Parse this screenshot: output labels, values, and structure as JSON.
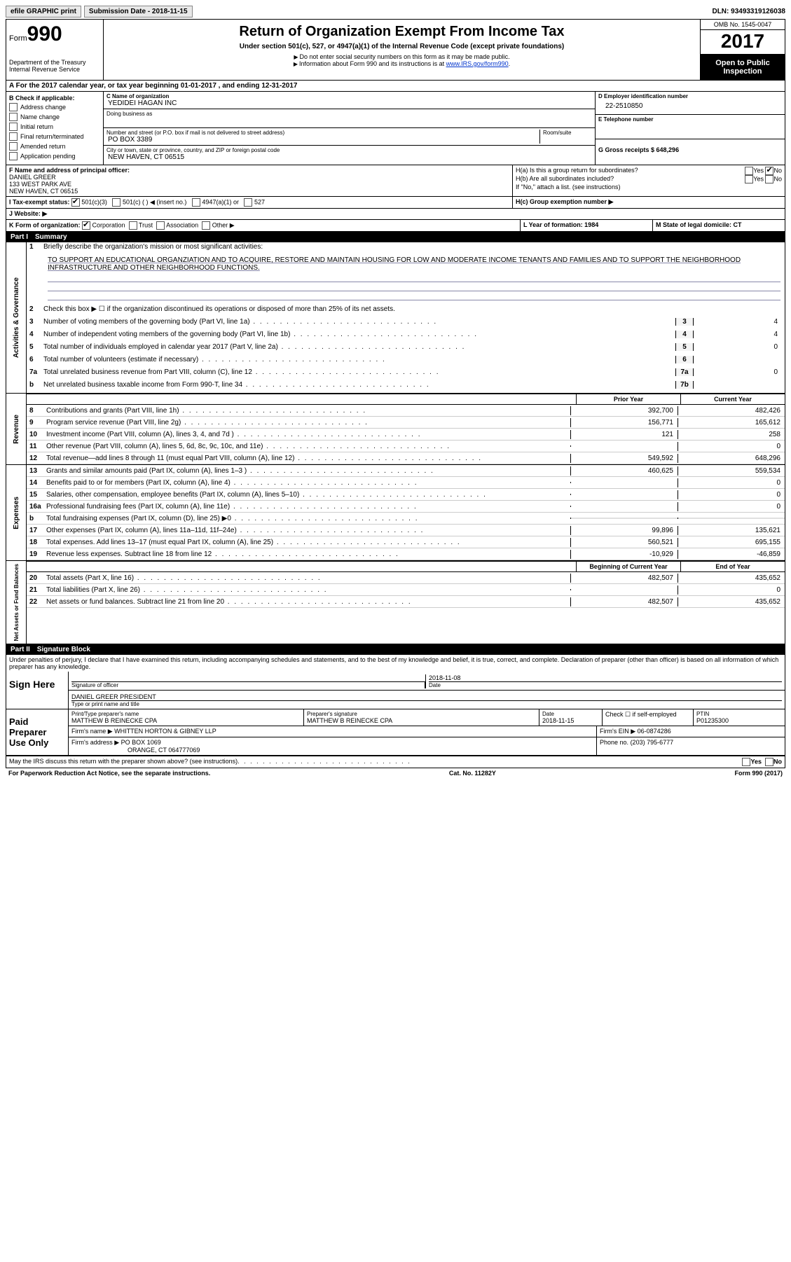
{
  "topbar": {
    "efile_label": "efile GRAPHIC print",
    "submission_label": "Submission Date - 2018-11-15",
    "dln_label": "DLN: 93493319126038"
  },
  "header": {
    "form_label": "Form",
    "form_number": "990",
    "dept": "Department of the Treasury\nInternal Revenue Service",
    "title": "Return of Organization Exempt From Income Tax",
    "subtitle": "Under section 501(c), 527, or 4947(a)(1) of the Internal Revenue Code (except private foundations)",
    "note1": "Do not enter social security numbers on this form as it may be made public.",
    "note2_pre": "Information about Form 990 and its instructions is at ",
    "note2_link": "www.IRS.gov/form990",
    "omb": "OMB No. 1545-0047",
    "year": "2017",
    "open": "Open to Public Inspection"
  },
  "sectionA": "A  For the 2017 calendar year, or tax year beginning 01-01-2017   , and ending 12-31-2017",
  "sectionB": {
    "title": "B Check if applicable:",
    "items": [
      "Address change",
      "Name change",
      "Initial return",
      "Final return/terminated",
      "Amended return",
      "Application pending"
    ]
  },
  "sectionC": {
    "name_label": "C Name of organization",
    "name": "YEDIDEI HAGAN INC",
    "dba_label": "Doing business as",
    "street_label": "Number and street (or P.O. box if mail is not delivered to street address)",
    "room_label": "Room/suite",
    "street": "PO BOX 3389",
    "city_label": "City or town, state or province, country, and ZIP or foreign postal code",
    "city": "NEW HAVEN, CT  06515"
  },
  "sectionD": {
    "label": "D Employer identification number",
    "value": "22-2510850"
  },
  "sectionE": {
    "label": "E Telephone number",
    "value": ""
  },
  "sectionG": {
    "label": "G Gross receipts $ 648,296"
  },
  "sectionF": {
    "label": "F Name and address of principal officer:",
    "name": "DANIEL GREER",
    "addr1": "133 WEST PARK AVE",
    "addr2": "NEW HAVEN, CT  06515"
  },
  "sectionH": {
    "ha": "H(a)  Is this a group return for subordinates?",
    "hb": "H(b)  Are all subordinates included?",
    "hb_note": "If \"No,\" attach a list. (see instructions)",
    "hc": "H(c)  Group exemption number ▶",
    "yes": "Yes",
    "no": "No"
  },
  "sectionI": {
    "label": "I  Tax-exempt status:",
    "opts": [
      "501(c)(3)",
      "501(c) (   ) ◀ (insert no.)",
      "4947(a)(1) or",
      "527"
    ]
  },
  "sectionJ": {
    "label": "J  Website: ▶"
  },
  "sectionK": {
    "label": "K Form of organization:",
    "opts": [
      "Corporation",
      "Trust",
      "Association",
      "Other ▶"
    ]
  },
  "sectionL": {
    "label": "L Year of formation: 1984"
  },
  "sectionM": {
    "label": "M State of legal domicile: CT"
  },
  "part1": {
    "header": "Part I",
    "title": "Summary",
    "side_gov": "Activities & Governance",
    "side_rev": "Revenue",
    "side_exp": "Expenses",
    "side_net": "Net Assets or Fund Balances",
    "line1_label": "Briefly describe the organization's mission or most significant activities:",
    "mission": "TO SUPPORT AN EDUCATIONAL ORGANZIATION AND TO ACQUIRE, RESTORE AND MAINTAIN HOUSING FOR LOW AND MODERATE INCOME TENANTS AND FAMILIES AND TO SUPPORT THE NEIGHBORHOOD INFRASTRUCTURE AND OTHER NEIGHBORHOOD FUNCTIONS.",
    "line2": "Check this box ▶ ☐  if the organization discontinued its operations or disposed of more than 25% of its net assets.",
    "gov_lines": [
      {
        "n": "3",
        "d": "Number of voting members of the governing body (Part VI, line 1a)",
        "box": "3",
        "v": "4"
      },
      {
        "n": "4",
        "d": "Number of independent voting members of the governing body (Part VI, line 1b)",
        "box": "4",
        "v": "4"
      },
      {
        "n": "5",
        "d": "Total number of individuals employed in calendar year 2017 (Part V, line 2a)",
        "box": "5",
        "v": "0"
      },
      {
        "n": "6",
        "d": "Total number of volunteers (estimate if necessary)",
        "box": "6",
        "v": ""
      },
      {
        "n": "7a",
        "d": "Total unrelated business revenue from Part VIII, column (C), line 12",
        "box": "7a",
        "v": "0"
      },
      {
        "n": "b",
        "d": "Net unrelated business taxable income from Form 990-T, line 34",
        "box": "7b",
        "v": ""
      }
    ],
    "col_prior": "Prior Year",
    "col_current": "Current Year",
    "rev_lines": [
      {
        "n": "8",
        "d": "Contributions and grants (Part VIII, line 1h)",
        "py": "392,700",
        "cy": "482,426"
      },
      {
        "n": "9",
        "d": "Program service revenue (Part VIII, line 2g)",
        "py": "156,771",
        "cy": "165,612"
      },
      {
        "n": "10",
        "d": "Investment income (Part VIII, column (A), lines 3, 4, and 7d )",
        "py": "121",
        "cy": "258"
      },
      {
        "n": "11",
        "d": "Other revenue (Part VIII, column (A), lines 5, 6d, 8c, 9c, 10c, and 11e)",
        "py": "",
        "cy": "0"
      },
      {
        "n": "12",
        "d": "Total revenue—add lines 8 through 11 (must equal Part VIII, column (A), line 12)",
        "py": "549,592",
        "cy": "648,296"
      }
    ],
    "exp_lines": [
      {
        "n": "13",
        "d": "Grants and similar amounts paid (Part IX, column (A), lines 1–3 )",
        "py": "460,625",
        "cy": "559,534"
      },
      {
        "n": "14",
        "d": "Benefits paid to or for members (Part IX, column (A), line 4)",
        "py": "",
        "cy": "0"
      },
      {
        "n": "15",
        "d": "Salaries, other compensation, employee benefits (Part IX, column (A), lines 5–10)",
        "py": "",
        "cy": "0"
      },
      {
        "n": "16a",
        "d": "Professional fundraising fees (Part IX, column (A), line 11e)",
        "py": "",
        "cy": "0"
      },
      {
        "n": "b",
        "d": "Total fundraising expenses (Part IX, column (D), line 25) ▶0",
        "py": "",
        "cy": "",
        "shade": true
      },
      {
        "n": "17",
        "d": "Other expenses (Part IX, column (A), lines 11a–11d, 11f–24e)",
        "py": "99,896",
        "cy": "135,621"
      },
      {
        "n": "18",
        "d": "Total expenses. Add lines 13–17 (must equal Part IX, column (A), line 25)",
        "py": "560,521",
        "cy": "695,155"
      },
      {
        "n": "19",
        "d": "Revenue less expenses. Subtract line 18 from line 12",
        "py": "-10,929",
        "cy": "-46,859"
      }
    ],
    "col_begin": "Beginning of Current Year",
    "col_end": "End of Year",
    "net_lines": [
      {
        "n": "20",
        "d": "Total assets (Part X, line 16)",
        "py": "482,507",
        "cy": "435,652"
      },
      {
        "n": "21",
        "d": "Total liabilities (Part X, line 26)",
        "py": "",
        "cy": "0"
      },
      {
        "n": "22",
        "d": "Net assets or fund balances. Subtract line 21 from line 20",
        "py": "482,507",
        "cy": "435,652"
      }
    ]
  },
  "part2": {
    "header": "Part II",
    "title": "Signature Block",
    "perjury": "Under penalties of perjury, I declare that I have examined this return, including accompanying schedules and statements, and to the best of my knowledge and belief, it is true, correct, and complete. Declaration of preparer (other than officer) is based on all information of which preparer has any knowledge.",
    "sign_here": "Sign Here",
    "sig_officer": "Signature of officer",
    "date_label": "Date",
    "sig_date": "2018-11-08",
    "officer_name": "DANIEL GREER PRESIDENT",
    "type_name": "Type or print name and title",
    "paid_prep": "Paid Preparer Use Only",
    "prep_name_label": "Print/Type preparer's name",
    "prep_name": "MATTHEW B REINECKE CPA",
    "prep_sig_label": "Preparer's signature",
    "prep_sig": "MATTHEW B REINECKE CPA",
    "prep_date_label": "Date",
    "prep_date": "2018-11-15",
    "check_self": "Check ☐ if self-employed",
    "ptin_label": "PTIN",
    "ptin": "P01235300",
    "firm_name_label": "Firm's name      ▶",
    "firm_name": "WHITTEN HORTON & GIBNEY LLP",
    "firm_ein_label": "Firm's EIN ▶",
    "firm_ein": "06-0874286",
    "firm_addr_label": "Firm's address ▶",
    "firm_addr": "PO BOX 1069",
    "firm_city": "ORANGE, CT  064777069",
    "phone_label": "Phone no.",
    "phone": "(203) 795-6777",
    "discuss": "May the IRS discuss this return with the preparer shown above? (see instructions)",
    "yes": "Yes",
    "no": "No"
  },
  "footer": {
    "left": "For Paperwork Reduction Act Notice, see the separate instructions.",
    "mid": "Cat. No. 11282Y",
    "right": "Form 990 (2017)"
  }
}
